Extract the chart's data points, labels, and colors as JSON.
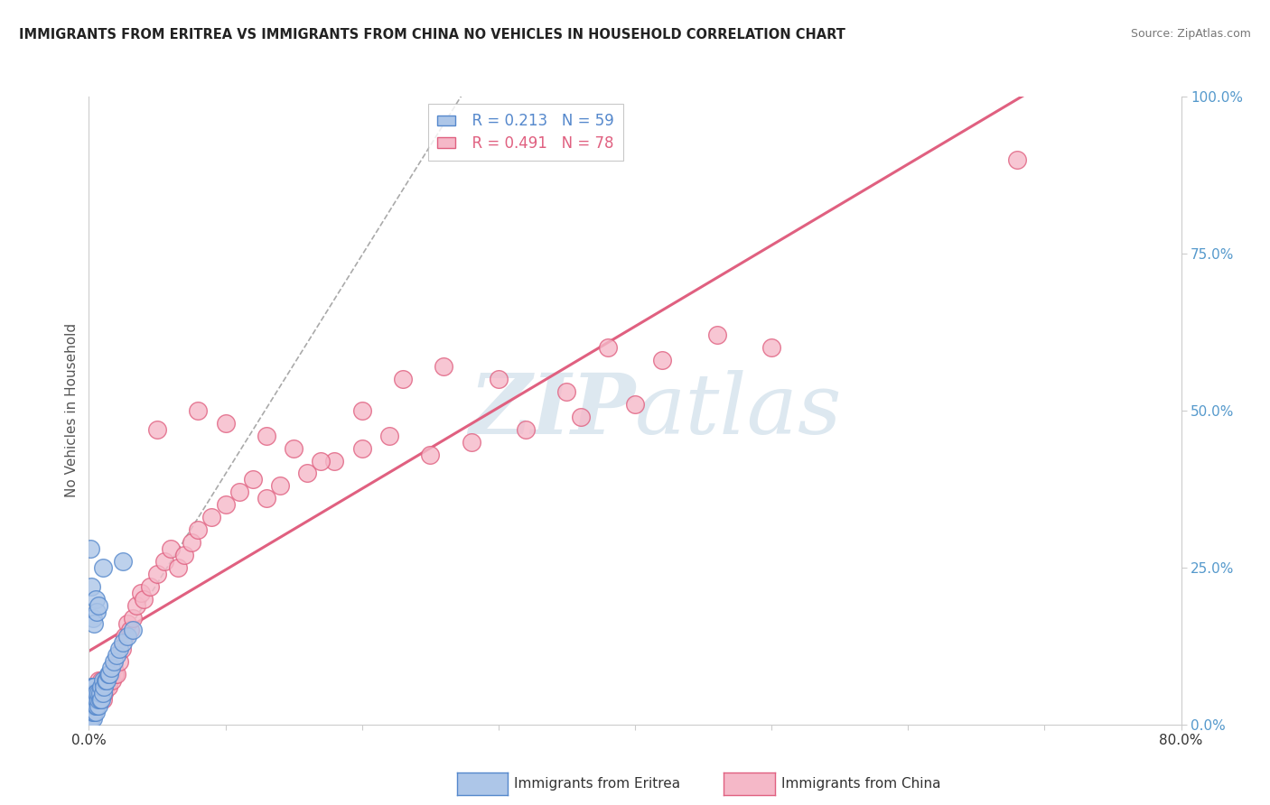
{
  "title": "IMMIGRANTS FROM ERITREA VS IMMIGRANTS FROM CHINA NO VEHICLES IN HOUSEHOLD CORRELATION CHART",
  "source": "Source: ZipAtlas.com",
  "ylabel": "No Vehicles in Household",
  "legend_eritrea": "Immigrants from Eritrea",
  "legend_china": "Immigrants from China",
  "R_eritrea": "0.213",
  "N_eritrea": "59",
  "R_china": "0.491",
  "N_china": "78",
  "color_eritrea_fill": "#adc6e8",
  "color_eritrea_edge": "#5588cc",
  "color_china_fill": "#f5b8c8",
  "color_china_edge": "#e06080",
  "color_eritrea_line": "#8aaad0",
  "color_china_line": "#e06080",
  "color_dash_line": "#aaaaaa",
  "watermark_color": "#dde8f0",
  "background_color": "#ffffff",
  "grid_color": "#dddddd",
  "right_tick_color": "#5599cc",
  "xlim": [
    0.0,
    0.8
  ],
  "ylim": [
    0.0,
    1.0
  ],
  "eritrea_x": [
    0.0005,
    0.001,
    0.001,
    0.001,
    0.001,
    0.002,
    0.002,
    0.002,
    0.002,
    0.002,
    0.002,
    0.003,
    0.003,
    0.003,
    0.003,
    0.003,
    0.003,
    0.004,
    0.004,
    0.004,
    0.004,
    0.004,
    0.005,
    0.005,
    0.005,
    0.005,
    0.006,
    0.006,
    0.006,
    0.007,
    0.007,
    0.007,
    0.008,
    0.008,
    0.009,
    0.009,
    0.01,
    0.01,
    0.011,
    0.012,
    0.013,
    0.014,
    0.015,
    0.016,
    0.018,
    0.02,
    0.022,
    0.025,
    0.028,
    0.032,
    0.001,
    0.002,
    0.003,
    0.004,
    0.005,
    0.006,
    0.007,
    0.01,
    0.025
  ],
  "eritrea_y": [
    0.01,
    0.02,
    0.03,
    0.04,
    0.05,
    0.01,
    0.02,
    0.03,
    0.04,
    0.05,
    0.06,
    0.01,
    0.02,
    0.03,
    0.04,
    0.05,
    0.06,
    0.02,
    0.03,
    0.04,
    0.05,
    0.06,
    0.02,
    0.03,
    0.04,
    0.05,
    0.03,
    0.04,
    0.05,
    0.03,
    0.04,
    0.05,
    0.04,
    0.05,
    0.04,
    0.06,
    0.05,
    0.07,
    0.06,
    0.07,
    0.07,
    0.08,
    0.08,
    0.09,
    0.1,
    0.11,
    0.12,
    0.13,
    0.14,
    0.15,
    0.28,
    0.22,
    0.17,
    0.16,
    0.2,
    0.18,
    0.19,
    0.25,
    0.26
  ],
  "china_x": [
    0.001,
    0.001,
    0.002,
    0.002,
    0.003,
    0.003,
    0.004,
    0.004,
    0.005,
    0.005,
    0.006,
    0.006,
    0.007,
    0.007,
    0.008,
    0.008,
    0.009,
    0.009,
    0.01,
    0.01,
    0.011,
    0.012,
    0.013,
    0.014,
    0.015,
    0.016,
    0.017,
    0.018,
    0.019,
    0.02,
    0.022,
    0.024,
    0.026,
    0.028,
    0.03,
    0.032,
    0.035,
    0.038,
    0.04,
    0.045,
    0.05,
    0.055,
    0.06,
    0.065,
    0.07,
    0.075,
    0.08,
    0.09,
    0.1,
    0.11,
    0.12,
    0.13,
    0.14,
    0.16,
    0.18,
    0.2,
    0.22,
    0.25,
    0.28,
    0.32,
    0.36,
    0.4,
    0.05,
    0.08,
    0.1,
    0.13,
    0.15,
    0.17,
    0.2,
    0.23,
    0.26,
    0.3,
    0.35,
    0.38,
    0.42,
    0.46,
    0.5,
    0.68
  ],
  "china_y": [
    0.01,
    0.03,
    0.02,
    0.04,
    0.03,
    0.05,
    0.04,
    0.06,
    0.03,
    0.05,
    0.04,
    0.06,
    0.05,
    0.07,
    0.04,
    0.06,
    0.05,
    0.07,
    0.04,
    0.06,
    0.05,
    0.06,
    0.07,
    0.06,
    0.07,
    0.08,
    0.07,
    0.09,
    0.08,
    0.08,
    0.1,
    0.12,
    0.14,
    0.16,
    0.15,
    0.17,
    0.19,
    0.21,
    0.2,
    0.22,
    0.24,
    0.26,
    0.28,
    0.25,
    0.27,
    0.29,
    0.31,
    0.33,
    0.35,
    0.37,
    0.39,
    0.36,
    0.38,
    0.4,
    0.42,
    0.44,
    0.46,
    0.43,
    0.45,
    0.47,
    0.49,
    0.51,
    0.47,
    0.5,
    0.48,
    0.46,
    0.44,
    0.42,
    0.5,
    0.55,
    0.57,
    0.55,
    0.53,
    0.6,
    0.58,
    0.62,
    0.6,
    0.9
  ]
}
